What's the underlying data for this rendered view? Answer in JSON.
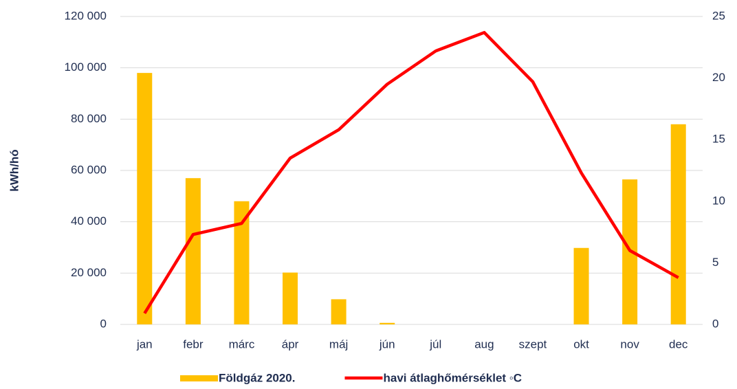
{
  "chart_data": {
    "type": "bar_line",
    "ylabel": "kWh/hó",
    "categories": [
      "jan",
      "febr",
      "márc",
      "ápr",
      "máj",
      "jún",
      "júl",
      "aug",
      "szept",
      "okt",
      "nov",
      "dec"
    ],
    "series": [
      {
        "name": "Földgáz 2020.",
        "type": "bar",
        "color": "#ffc000",
        "values": [
          98000,
          57000,
          48000,
          20200,
          9800,
          600,
          0,
          0,
          0,
          29800,
          56500,
          78000
        ]
      },
      {
        "name": "havi átlaghőmérséklet ◦C",
        "type": "line",
        "color": "#ff0000",
        "axis": "y2",
        "values": [
          0.9,
          7.3,
          8.2,
          13.5,
          15.8,
          19.5,
          22.2,
          23.7,
          19.7,
          12.3,
          6.0,
          3.8
        ]
      }
    ],
    "ylim": [
      0,
      120000
    ],
    "yticks": [
      {
        "value": 0,
        "label": "0"
      },
      {
        "value": 20000,
        "label": "20 000"
      },
      {
        "value": 40000,
        "label": "40 000"
      },
      {
        "value": 60000,
        "label": "60 000"
      },
      {
        "value": 80000,
        "label": "80 000"
      },
      {
        "value": 100000,
        "label": "100 000"
      },
      {
        "value": 120000,
        "label": "120 000"
      }
    ],
    "y2lim": [
      0,
      25
    ],
    "y2ticks": [
      0,
      5,
      10,
      15,
      20,
      25
    ],
    "grid": true,
    "legend": "bottom"
  }
}
